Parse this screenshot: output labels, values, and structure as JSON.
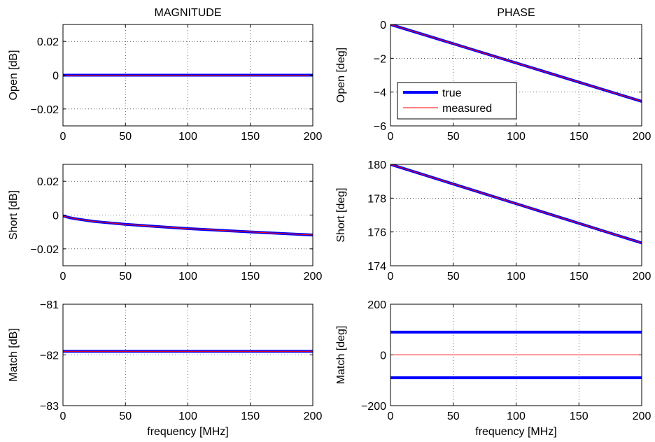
{
  "chart_data": [
    {
      "type": "line",
      "title": "MAGNITUDE",
      "ylabel": "Open [dB]",
      "xlabel": "",
      "xlim": [
        0,
        200
      ],
      "ylim": [
        -0.03,
        0.03
      ],
      "xticks": [
        0,
        50,
        100,
        150,
        200
      ],
      "yticks": [
        -0.02,
        0,
        0.02
      ],
      "ytick_labels": [
        "−0.02",
        "0",
        "0.02"
      ],
      "grid": true,
      "series": [
        {
          "name": "true",
          "color": "#0000ff",
          "x": [
            0,
            200
          ],
          "y": [
            0,
            0
          ]
        },
        {
          "name": "measured",
          "color": "#ff0000",
          "x": [
            0,
            200
          ],
          "y": [
            0,
            0
          ]
        }
      ]
    },
    {
      "type": "line",
      "title": "PHASE",
      "ylabel": "Open [deg]",
      "xlabel": "",
      "xlim": [
        0,
        200
      ],
      "ylim": [
        -6,
        0
      ],
      "xticks": [
        0,
        50,
        100,
        150,
        200
      ],
      "yticks": [
        -6,
        -4,
        -2,
        0
      ],
      "ytick_labels": [
        "−6",
        "−4",
        "−2",
        "0"
      ],
      "grid": true,
      "legend": {
        "placement": "lower-left",
        "entries": [
          "true",
          "measured"
        ]
      },
      "series": [
        {
          "name": "true",
          "color": "#0000ff",
          "x": [
            0,
            200
          ],
          "y": [
            0,
            -4.55
          ]
        },
        {
          "name": "measured",
          "color": "#ff0000",
          "x": [
            0,
            200
          ],
          "y": [
            0,
            -4.55
          ]
        }
      ]
    },
    {
      "type": "line",
      "title": "",
      "ylabel": "Short [dB]",
      "xlabel": "",
      "xlim": [
        0,
        200
      ],
      "ylim": [
        -0.03,
        0.03
      ],
      "xticks": [
        0,
        50,
        100,
        150,
        200
      ],
      "yticks": [
        -0.02,
        0,
        0.02
      ],
      "ytick_labels": [
        "−0.02",
        "0",
        "0.02"
      ],
      "grid": true,
      "series": [
        {
          "name": "true",
          "color": "#0000ff",
          "x": [
            0,
            5,
            10,
            25,
            50,
            75,
            100,
            125,
            150,
            175,
            200
          ],
          "y": [
            -0.0005,
            -0.0015,
            -0.0022,
            -0.0038,
            -0.0055,
            -0.0068,
            -0.008,
            -0.009,
            -0.01,
            -0.0109,
            -0.0118
          ]
        },
        {
          "name": "measured",
          "color": "#ff0000",
          "x": [
            0,
            5,
            10,
            25,
            50,
            75,
            100,
            125,
            150,
            175,
            200
          ],
          "y": [
            -0.0005,
            -0.0015,
            -0.0022,
            -0.0038,
            -0.0055,
            -0.0068,
            -0.008,
            -0.009,
            -0.01,
            -0.0109,
            -0.0118
          ]
        }
      ]
    },
    {
      "type": "line",
      "title": "",
      "ylabel": "Short [deg]",
      "xlabel": "",
      "xlim": [
        0,
        200
      ],
      "ylim": [
        174,
        180
      ],
      "xticks": [
        0,
        50,
        100,
        150,
        200
      ],
      "yticks": [
        174,
        176,
        178,
        180
      ],
      "ytick_labels": [
        "174",
        "176",
        "178",
        "180"
      ],
      "grid": true,
      "series": [
        {
          "name": "true",
          "color": "#0000ff",
          "x": [
            0,
            200
          ],
          "y": [
            180,
            175.35
          ]
        },
        {
          "name": "measured",
          "color": "#ff0000",
          "x": [
            0,
            200
          ],
          "y": [
            180,
            175.35
          ]
        }
      ]
    },
    {
      "type": "line",
      "title": "",
      "ylabel": "Match [dB]",
      "xlabel": "frequency [MHz]",
      "xlim": [
        0,
        200
      ],
      "ylim": [
        -83,
        -81
      ],
      "xticks": [
        0,
        50,
        100,
        150,
        200
      ],
      "yticks": [
        -83,
        -82,
        -81
      ],
      "ytick_labels": [
        "−83",
        "−82",
        "−81"
      ],
      "grid": true,
      "series": [
        {
          "name": "true",
          "color": "#0000ff",
          "x": [
            0,
            200
          ],
          "y": [
            -81.93,
            -81.93
          ]
        },
        {
          "name": "measured",
          "color": "#ff0000",
          "x": [
            0,
            200
          ],
          "y": [
            -81.93,
            -81.93
          ]
        }
      ]
    },
    {
      "type": "line",
      "title": "",
      "ylabel": "Match [deg]",
      "xlabel": "frequency [MHz]",
      "xlim": [
        0,
        200
      ],
      "ylim": [
        -200,
        200
      ],
      "xticks": [
        0,
        50,
        100,
        150,
        200
      ],
      "yticks": [
        -200,
        0,
        200
      ],
      "ytick_labels": [
        "−200",
        "0",
        "200"
      ],
      "grid": true,
      "series": [
        {
          "name": "true",
          "color": "#0000ff",
          "x": [
            0,
            200
          ],
          "y": [
            90,
            90
          ]
        },
        {
          "name": "true",
          "color": "#0000ff",
          "x": [
            0,
            200
          ],
          "y": [
            -90,
            -90
          ]
        },
        {
          "name": "measured",
          "color": "#ff0000",
          "x": [
            0,
            200
          ],
          "y": [
            0,
            0
          ]
        }
      ]
    }
  ]
}
